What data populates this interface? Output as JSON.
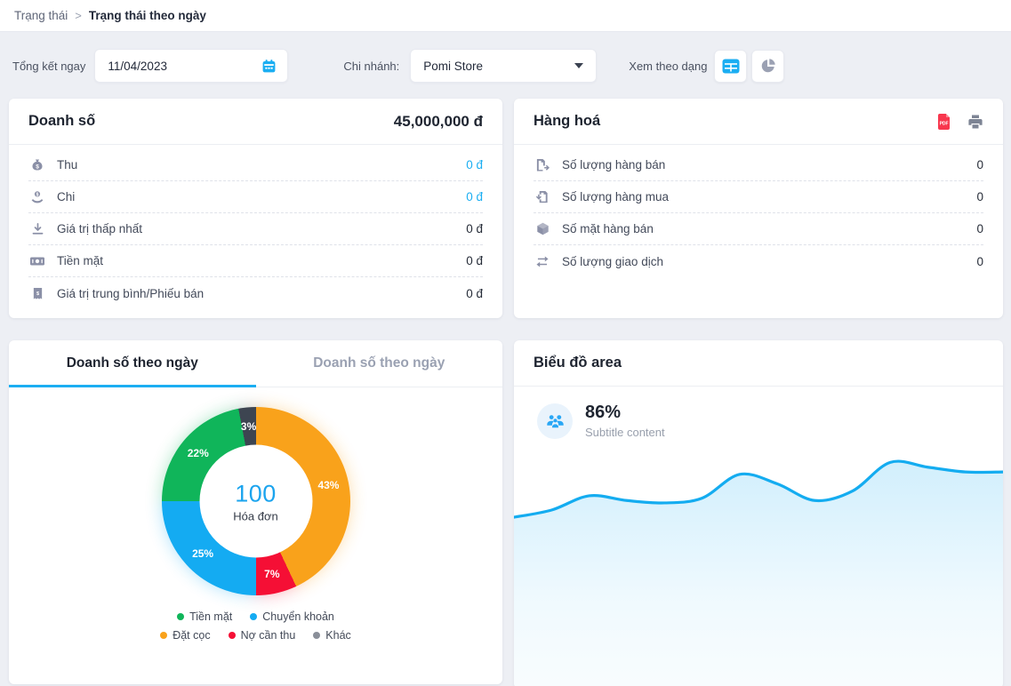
{
  "breadcrumb": {
    "parent": "Trạng thái",
    "separator": ">",
    "current": "Trạng thái theo ngày"
  },
  "filters": {
    "date_label": "Tổng kết ngay",
    "date_value": "11/04/2023",
    "branch_label": "Chi nhánh:",
    "branch_value": "Pomi Store",
    "view_label": "Xem theo dạng"
  },
  "sales_card": {
    "title": "Doanh số",
    "total": "45,000,000 đ",
    "rows": [
      {
        "icon": "money-bag-icon",
        "label": "Thu",
        "value": "0 đ"
      },
      {
        "icon": "hand-coin-icon",
        "label": "Chi",
        "value": "0 đ"
      },
      {
        "icon": "download-icon",
        "label": "Giá trị thấp nhất",
        "value": "0 đ"
      },
      {
        "icon": "banknote-icon",
        "label": "Tiền mặt",
        "value": "0 đ"
      },
      {
        "icon": "receipt-icon",
        "label": "Giá trị trung bình/Phiếu bán",
        "value": "0 đ"
      }
    ]
  },
  "goods_card": {
    "title": "Hàng hoá",
    "rows": [
      {
        "icon": "file-export-icon",
        "label": "Số lượng hàng bán",
        "value": "0"
      },
      {
        "icon": "file-import-icon",
        "label": "Số lượng hàng mua",
        "value": "0"
      },
      {
        "icon": "cube-icon",
        "label": "Số mặt hàng bán",
        "value": "0"
      },
      {
        "icon": "exchange-icon",
        "label": "Số lượng giao dịch",
        "value": "0"
      }
    ]
  },
  "donut_card": {
    "tabs": [
      {
        "label": "Doanh số theo ngày",
        "active": true
      },
      {
        "label": "Doanh số theo ngày",
        "active": false
      }
    ]
  },
  "area_card": {
    "title": "Biểu đồ area",
    "stat_value": "86%",
    "stat_subtitle": "Subtitle content"
  },
  "colors": {
    "accent": "#1BAEF2",
    "pdf_red": "#F8374E"
  },
  "chart_data": [
    {
      "type": "pie",
      "title": "Doanh số theo ngày",
      "center_value": "100",
      "center_label": "Hóa đơn",
      "start_angle_deg": 0,
      "direction": "clockwise",
      "series": [
        {
          "name": "Đặt cọc",
          "value": 43,
          "color": "#F9A21B"
        },
        {
          "name": "Nợ cần thu",
          "value": 7,
          "color": "#F50F35"
        },
        {
          "name": "Chuyển khoản",
          "value": 25,
          "color": "#14ABF2"
        },
        {
          "name": "Tiền mặt",
          "value": 22,
          "color": "#10B55A"
        },
        {
          "name": "Khác",
          "value": 3,
          "color": "#3D4551"
        }
      ],
      "legend": [
        {
          "label": "Tiền mặt",
          "color": "#10B55A"
        },
        {
          "label": "Chuyển khoản",
          "color": "#14ABF2"
        },
        {
          "label": "Đặt cọc",
          "color": "#F9A21B"
        },
        {
          "label": "Nợ cần thu",
          "color": "#F50F35"
        },
        {
          "label": "Khác",
          "color": "#8A8F99"
        }
      ],
      "legend_position": "bottom"
    },
    {
      "type": "area",
      "title": "Biểu đồ area",
      "line_color": "#14ACF0",
      "fill_color": "#1BAEF2",
      "x": [
        0,
        1,
        2,
        3,
        4,
        5,
        6,
        7,
        8,
        9,
        10,
        11,
        12,
        13
      ],
      "values": [
        72,
        75,
        81,
        79,
        78,
        80,
        90,
        86,
        79,
        83,
        95,
        93,
        91,
        91
      ],
      "ylim": [
        0,
        100
      ],
      "grid": false,
      "xlabel": "",
      "ylabel": ""
    }
  ]
}
